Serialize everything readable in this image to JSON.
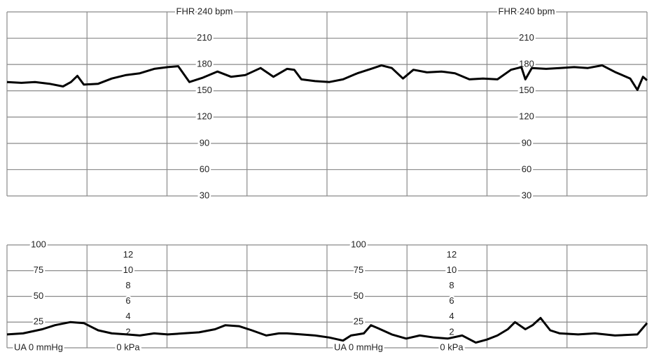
{
  "chart_data": [
    {
      "type": "line",
      "color": "#000000",
      "xlim": [
        0,
        8
      ],
      "x": [
        0,
        0.18,
        0.35,
        0.53,
        0.7,
        0.8,
        0.88,
        0.96,
        1.14,
        1.31,
        1.49,
        1.66,
        1.84,
        2.01,
        2.14,
        2.28,
        2.45,
        2.63,
        2.8,
        2.98,
        3.17,
        3.33,
        3.5,
        3.59,
        3.68,
        3.85,
        4.03,
        4.2,
        4.38,
        4.55,
        4.68,
        4.81,
        4.95,
        5.08,
        5.25,
        5.43,
        5.6,
        5.78,
        5.95,
        6.13,
        6.3,
        6.43,
        6.48,
        6.56,
        6.74,
        6.91,
        7.09,
        7.26,
        7.44,
        7.61,
        7.79,
        7.88,
        7.95,
        8
      ],
      "values": [
        160,
        159,
        160,
        158,
        155,
        160,
        167,
        157,
        158,
        164,
        168,
        170,
        175,
        177,
        178,
        160,
        165,
        172,
        166,
        168,
        176,
        166,
        175,
        174,
        163,
        161,
        160,
        163,
        170,
        175,
        179,
        176,
        164,
        174,
        171,
        172,
        170,
        163,
        164,
        163,
        174,
        177,
        163,
        176,
        175,
        176,
        177,
        176,
        179,
        171,
        164,
        151,
        166,
        162
      ],
      "ylim": [
        30,
        240
      ],
      "yticks": [
        {
          "value": 240,
          "label": "FHR 240 bpm"
        },
        210,
        180,
        150,
        120,
        90,
        60,
        30
      ]
    },
    {
      "type": "line",
      "color": "#000000",
      "xlim": [
        0,
        8
      ],
      "x": [
        0,
        0.2,
        0.44,
        0.6,
        0.79,
        0.96,
        1.14,
        1.31,
        1.5,
        1.66,
        1.84,
        2.01,
        2.2,
        2.4,
        2.6,
        2.73,
        2.9,
        3.06,
        3.24,
        3.4,
        3.5,
        3.68,
        3.85,
        4.03,
        4.2,
        4.3,
        4.46,
        4.55,
        4.64,
        4.81,
        4.99,
        5.16,
        5.34,
        5.51,
        5.69,
        5.86,
        6.0,
        6.13,
        6.26,
        6.35,
        6.48,
        6.57,
        6.67,
        6.79,
        6.91,
        7.14,
        7.35,
        7.6,
        7.88,
        8
      ],
      "values": [
        13,
        14,
        18,
        22,
        25,
        24,
        17,
        14,
        13,
        12,
        14,
        13,
        14,
        15,
        18,
        22,
        21,
        17,
        12,
        14,
        14,
        13,
        12,
        10,
        7,
        12,
        14,
        22,
        19,
        13,
        9,
        12,
        10,
        9,
        12,
        5,
        8,
        12,
        18,
        25,
        18,
        22,
        29,
        17,
        14,
        13,
        14,
        12,
        13,
        24
      ],
      "ylim": [
        0,
        100
      ],
      "yticks": [
        {
          "value": 0,
          "label": "UA  0  mmHg"
        },
        25,
        50,
        75,
        100
      ],
      "y2lim": [
        0,
        13.3
      ],
      "y2ticks": [
        {
          "value": 0,
          "label": "0 kPa"
        },
        2,
        4,
        6,
        8,
        10,
        12
      ]
    }
  ]
}
